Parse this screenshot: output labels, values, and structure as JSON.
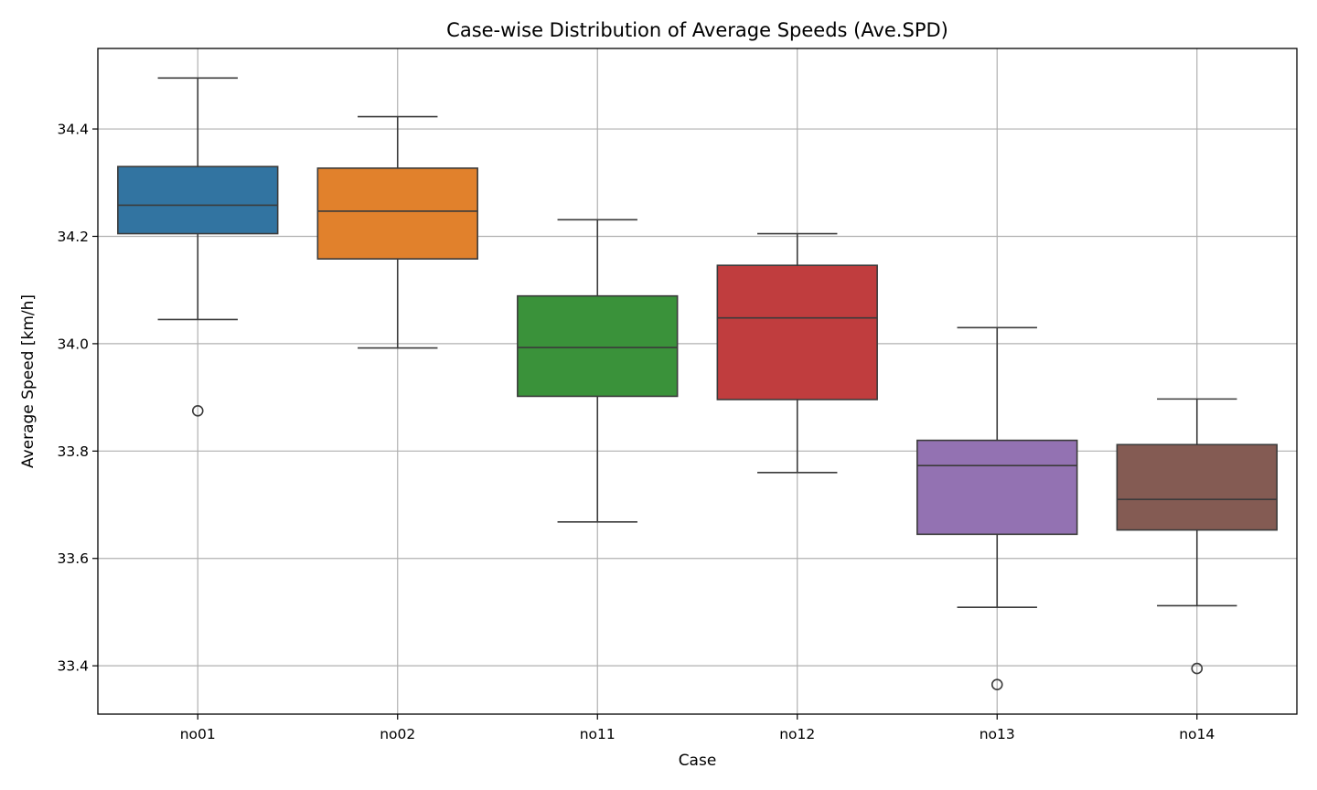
{
  "chart_data": {
    "type": "box",
    "title": "Case-wise Distribution of Average Speeds (Ave.SPD)",
    "xlabel": "Case",
    "ylabel": "Average Speed [km/h]",
    "ylim": [
      33.31,
      34.55
    ],
    "yticks": [
      33.4,
      33.6,
      33.8,
      34.0,
      34.2,
      34.4
    ],
    "ytick_labels": [
      "33.4",
      "33.6",
      "33.8",
      "34.0",
      "34.2",
      "34.4"
    ],
    "grid": true,
    "categories": [
      "no01",
      "no02",
      "no11",
      "no12",
      "no13",
      "no14"
    ],
    "boxes": [
      {
        "category": "no01",
        "color": "#3274a1",
        "whisker_low": 34.045,
        "q1": 34.205,
        "median": 34.258,
        "q3": 34.33,
        "whisker_high": 34.495,
        "outliers": [
          33.875
        ]
      },
      {
        "category": "no02",
        "color": "#e1812c",
        "whisker_low": 33.992,
        "q1": 34.158,
        "median": 34.247,
        "q3": 34.327,
        "whisker_high": 34.423,
        "outliers": []
      },
      {
        "category": "no11",
        "color": "#3a923a",
        "whisker_low": 33.668,
        "q1": 33.902,
        "median": 33.993,
        "q3": 34.089,
        "whisker_high": 34.231,
        "outliers": []
      },
      {
        "category": "no12",
        "color": "#c03d3e",
        "whisker_low": 33.76,
        "q1": 33.896,
        "median": 34.048,
        "q3": 34.146,
        "whisker_high": 34.205,
        "outliers": []
      },
      {
        "category": "no13",
        "color": "#9372b2",
        "whisker_low": 33.509,
        "q1": 33.645,
        "median": 33.773,
        "q3": 33.82,
        "whisker_high": 34.03,
        "outliers": [
          33.365
        ]
      },
      {
        "category": "no14",
        "color": "#845b53",
        "whisker_low": 33.512,
        "q1": 33.653,
        "median": 33.71,
        "q3": 33.812,
        "whisker_high": 33.897,
        "outliers": [
          33.395
        ]
      }
    ]
  }
}
